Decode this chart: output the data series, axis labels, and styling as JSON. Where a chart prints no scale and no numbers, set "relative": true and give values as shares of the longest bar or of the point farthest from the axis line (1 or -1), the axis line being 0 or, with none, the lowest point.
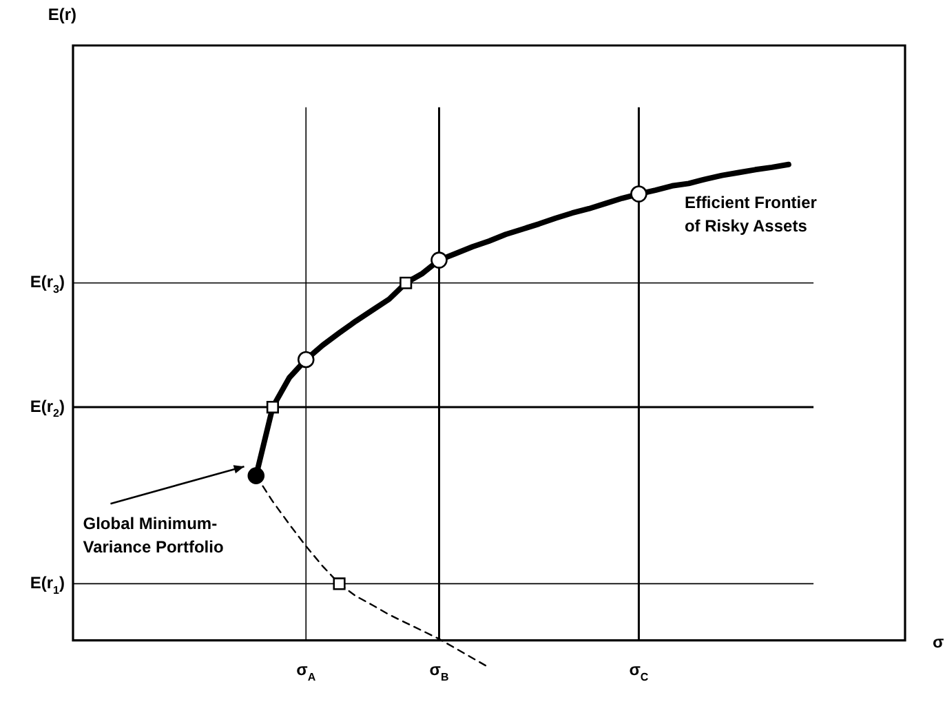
{
  "chart_data": {
    "type": "line",
    "relative": true,
    "xlabel": "σ",
    "categories": [
      null,
      null,
      null,
      null,
      null,
      null,
      null,
      null,
      null,
      null,
      null,
      null,
      null,
      null,
      "σ$_{A}$",
      null,
      null,
      null,
      null,
      null,
      null,
      null,
      "σ$_{B}$",
      null,
      null,
      null,
      null,
      null,
      null,
      null,
      null,
      null,
      null,
      null,
      "σ$_{C}$",
      null,
      null,
      null,
      null,
      null,
      null,
      null,
      null,
      null,
      null,
      null,
      null,
      null,
      null,
      null,
      null
    ],
    "series": [
      {
        "type": "line",
        "color": "#000000",
        "line_style": "solid",
        "marker": "none",
        "values": [
          null,
          null,
          null,
          null,
          null,
          null,
          null,
          null,
          null,
          null,
          null,
          0.346,
          0.49,
          0.552,
          0.59,
          0.62,
          0.646,
          0.671,
          0.694,
          0.717,
          0.751,
          0.771,
          0.799,
          0.813,
          0.827,
          0.839,
          0.853,
          0.864,
          0.875,
          0.887,
          0.898,
          0.907,
          0.918,
          0.929,
          0.938,
          0.946,
          0.955,
          0.96,
          0.969,
          0.977,
          0.983,
          0.989,
          0.994,
          1.0,
          null,
          null,
          null,
          null,
          null,
          null,
          null
        ]
      },
      {
        "type": "line",
        "color": "#000000",
        "line_style": "dashed",
        "marker": "none",
        "values": [
          null,
          null,
          null,
          null,
          null,
          null,
          null,
          null,
          null,
          null,
          null,
          0.346,
          0.292,
          0.244,
          0.198,
          0.156,
          0.119,
          0.093,
          0.074,
          0.054,
          0.037,
          0.02,
          0.003,
          -0.017,
          -0.037,
          -0.057,
          null,
          null,
          null,
          null,
          null,
          null,
          null,
          null,
          null,
          null,
          null,
          null,
          null,
          null,
          null,
          null,
          null,
          null,
          null,
          null,
          null,
          null,
          null,
          null,
          null
        ]
      },
      {
        "type": "scatter",
        "color": "#ffffff",
        "marker": "circle",
        "values": [
          null,
          null,
          null,
          null,
          null,
          null,
          null,
          null,
          null,
          null,
          null,
          null,
          null,
          null,
          0.59,
          null,
          null,
          null,
          null,
          null,
          null,
          null,
          0.799,
          null,
          null,
          null,
          null,
          null,
          null,
          null,
          null,
          null,
          null,
          null,
          0.938,
          null,
          null,
          null,
          null,
          null,
          null,
          null,
          null,
          null,
          null,
          null,
          null,
          null,
          null,
          null,
          null
        ]
      },
      {
        "type": "scatter",
        "color": "#ffffff",
        "marker": "square",
        "values": [
          null,
          null,
          null,
          null,
          null,
          null,
          null,
          null,
          null,
          null,
          null,
          null,
          0.49,
          null,
          null,
          null,
          0.119,
          null,
          null,
          null,
          0.751,
          null,
          null,
          null,
          null,
          null,
          null,
          null,
          null,
          null,
          null,
          null,
          null,
          null,
          null,
          null,
          null,
          null,
          null,
          null,
          null,
          null,
          null,
          null,
          null,
          null,
          null,
          null,
          null,
          null,
          null
        ]
      },
      {
        "type": "scatter",
        "color": "#000000",
        "marker": "circle",
        "values": [
          null,
          null,
          null,
          null,
          null,
          null,
          null,
          null,
          null,
          null,
          null,
          0.346,
          null,
          null,
          null,
          null,
          null,
          null,
          null,
          null,
          null,
          null,
          null,
          null,
          null,
          null,
          null,
          null,
          null,
          null,
          null,
          null,
          null,
          null,
          null,
          null,
          null,
          null,
          null,
          null,
          null,
          null,
          null,
          null,
          null,
          null,
          null,
          null,
          null,
          null,
          null
        ]
      }
    ],
    "ref_lines": [
      {
        "axis": "y",
        "value": 0.119,
        "label": "E(r$_{1}$)"
      },
      {
        "axis": "y",
        "value": 0.49,
        "label": "E(r$_{2}$)"
      },
      {
        "axis": "y",
        "value": 0.751,
        "label": "E(r$_{3}$)"
      }
    ],
    "annotations": [
      "Efficient Frontier\nof Risky Assets",
      "Global Minimum-\nVariance Portfolio",
      "E(r)"
    ],
    "grid": "x",
    "legend": false
  }
}
